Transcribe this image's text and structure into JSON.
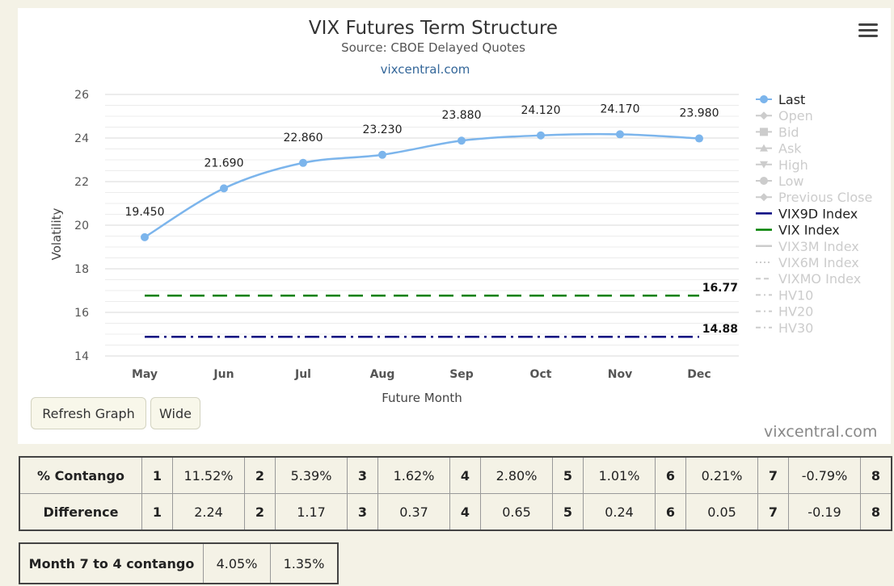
{
  "chart_data": {
    "type": "line",
    "title": "VIX Futures Term Structure",
    "subtitle": "Source: CBOE Delayed Quotes",
    "source_link": "vixcentral.com",
    "xlabel": "Future Month",
    "ylabel": "Volatility",
    "categories": [
      "May",
      "Jun",
      "Jul",
      "Aug",
      "Sep",
      "Oct",
      "Nov",
      "Dec"
    ],
    "y_ticks": [
      14,
      16,
      18,
      20,
      22,
      24,
      26
    ],
    "ylim": [
      14,
      26
    ],
    "series": [
      {
        "name": "Last",
        "values": [
          19.45,
          21.69,
          22.86,
          23.23,
          23.88,
          24.12,
          24.17,
          23.98
        ],
        "labels": [
          "19.450",
          "21.690",
          "22.860",
          "23.230",
          "23.880",
          "24.120",
          "24.170",
          "23.980"
        ],
        "color": "#7cb5ec"
      }
    ],
    "reference_lines": [
      {
        "name": "VIX Index",
        "value": 16.77,
        "label": "16.77",
        "color": "#008000",
        "dash": "dash"
      },
      {
        "name": "VIX9D Index",
        "value": 14.88,
        "label": "14.88",
        "color": "#000080",
        "dash": "dashdot"
      }
    ],
    "legend_position": "right",
    "legend": [
      {
        "name": "Last",
        "active": true,
        "symbol": "dot-line",
        "color": "#7cb5ec"
      },
      {
        "name": "Open",
        "active": false,
        "symbol": "diamond"
      },
      {
        "name": "Bid",
        "active": false,
        "symbol": "square"
      },
      {
        "name": "Ask",
        "active": false,
        "symbol": "triangle-up"
      },
      {
        "name": "High",
        "active": false,
        "symbol": "triangle-down"
      },
      {
        "name": "Low",
        "active": false,
        "symbol": "circle"
      },
      {
        "name": "Previous Close",
        "active": false,
        "symbol": "diamond"
      },
      {
        "name": "VIX9D Index",
        "active": true,
        "symbol": "line",
        "color": "#000080"
      },
      {
        "name": "VIX Index",
        "active": true,
        "symbol": "line",
        "color": "#008000"
      },
      {
        "name": "VIX3M Index",
        "active": false,
        "symbol": "line"
      },
      {
        "name": "VIX6M Index",
        "active": false,
        "symbol": "dotted-line"
      },
      {
        "name": "VIXMO Index",
        "active": false,
        "symbol": "dashed-line"
      },
      {
        "name": "HV10",
        "active": false,
        "symbol": "dashdot-line"
      },
      {
        "name": "HV20",
        "active": false,
        "symbol": "dashdot-line"
      },
      {
        "name": "HV30",
        "active": false,
        "symbol": "dashdot-line"
      }
    ]
  },
  "controls": {
    "refresh_label": "Refresh Graph",
    "wide_label": "Wide",
    "credit": "vixcentral.com",
    "menu_icon": "hamburger-menu-icon"
  },
  "contango_table": {
    "rows": [
      {
        "label": "% Contango",
        "cells": [
          "1",
          "11.52%",
          "2",
          "5.39%",
          "3",
          "1.62%",
          "4",
          "2.80%",
          "5",
          "1.01%",
          "6",
          "0.21%",
          "7",
          "-0.79%",
          "8"
        ]
      },
      {
        "label": "Difference",
        "cells": [
          "1",
          "2.24",
          "2",
          "1.17",
          "3",
          "0.37",
          "4",
          "0.65",
          "5",
          "0.24",
          "6",
          "0.05",
          "7",
          "-0.19",
          "8"
        ]
      }
    ]
  },
  "month74_table": {
    "label": "Month 7 to 4 contango",
    "values": [
      "4.05%",
      "1.35%"
    ]
  }
}
